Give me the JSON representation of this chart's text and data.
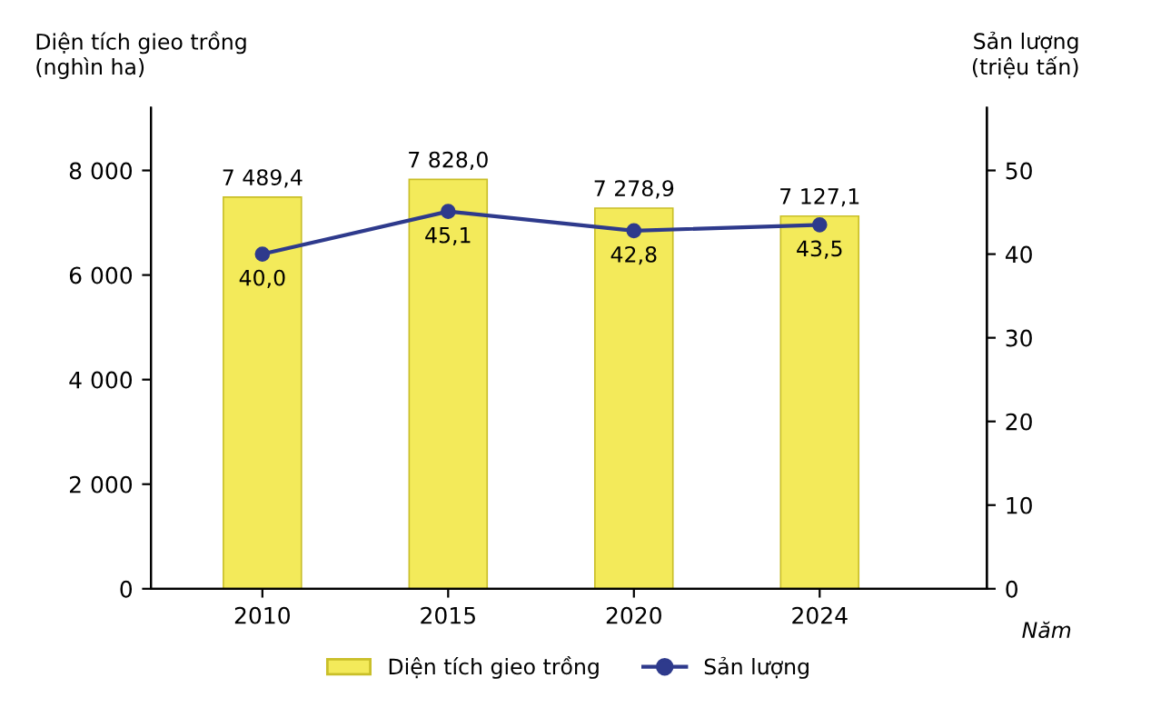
{
  "chart_data": {
    "type": "bar",
    "categories": [
      "2010",
      "2015",
      "2020",
      "2024"
    ],
    "series": [
      {
        "name": "Diện tích gieo trồng",
        "color": "#f3ea5a",
        "values": [
          7489.4,
          7828.0,
          7278.9,
          7127.1
        ],
        "value_labels": [
          "7 489,4",
          "7 828,0",
          "7 278,9",
          "7 127,1"
        ]
      },
      {
        "name": "Sản lượng",
        "type": "line",
        "axis": "y2",
        "color": "#2e3a8c",
        "values": [
          40.0,
          45.1,
          42.8,
          43.5
        ],
        "value_labels": [
          "40,0",
          "45,1",
          "42,8",
          "43,5"
        ]
      }
    ],
    "ylabel": "Diện tích gieo trồng (nghìn ha)",
    "y2label": "Sản lượng (triệu tấn)",
    "xlabel": "Năm",
    "ylim": [
      0,
      9200
    ],
    "yticks": [
      0,
      {
        "value": 2000,
        "label": "2 000"
      },
      {
        "value": 4000,
        "label": "4 000"
      },
      {
        "value": 6000,
        "label": "6 000"
      },
      {
        "value": 8000,
        "label": "8 000"
      }
    ],
    "y2lim": [
      0,
      57.5
    ],
    "y2ticks": [
      0,
      10,
      20,
      30,
      40,
      50
    ],
    "marker": "circle",
    "legend": "bottom",
    "grid": false
  }
}
